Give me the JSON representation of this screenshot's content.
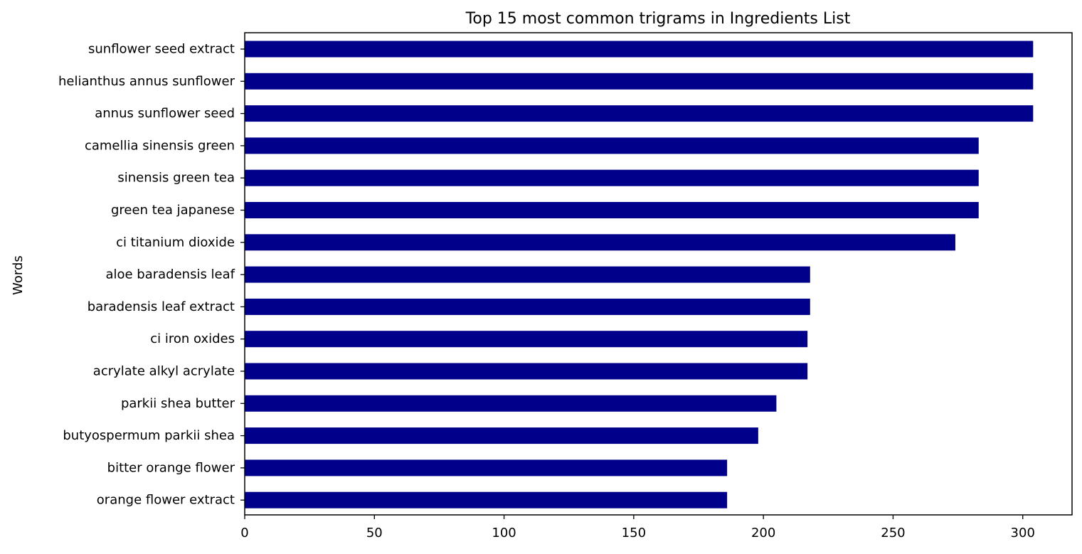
{
  "chart_data": {
    "type": "bar",
    "orientation": "horizontal",
    "title": "Top 15 most common trigrams in Ingredients List",
    "xlabel": "",
    "ylabel": "Words",
    "categories": [
      "sunflower seed extract",
      "helianthus annus sunflower",
      "annus sunflower seed",
      "camellia sinensis green",
      "sinensis green tea",
      "green tea japanese",
      "ci titanium dioxide",
      "aloe baradensis leaf",
      "baradensis leaf extract",
      "ci iron oxides",
      "acrylate alkyl acrylate",
      "parkii shea butter",
      "butyospermum parkii shea",
      "bitter orange flower",
      "orange flower extract"
    ],
    "values": [
      304,
      304,
      304,
      283,
      283,
      283,
      274,
      218,
      218,
      217,
      217,
      205,
      198,
      186,
      186
    ],
    "xlim": [
      0,
      319
    ],
    "xticks": [
      "0",
      "50",
      "100",
      "150",
      "200",
      "250",
      "300"
    ],
    "bar_color": "#00008b",
    "grid": false,
    "legend": "none"
  }
}
